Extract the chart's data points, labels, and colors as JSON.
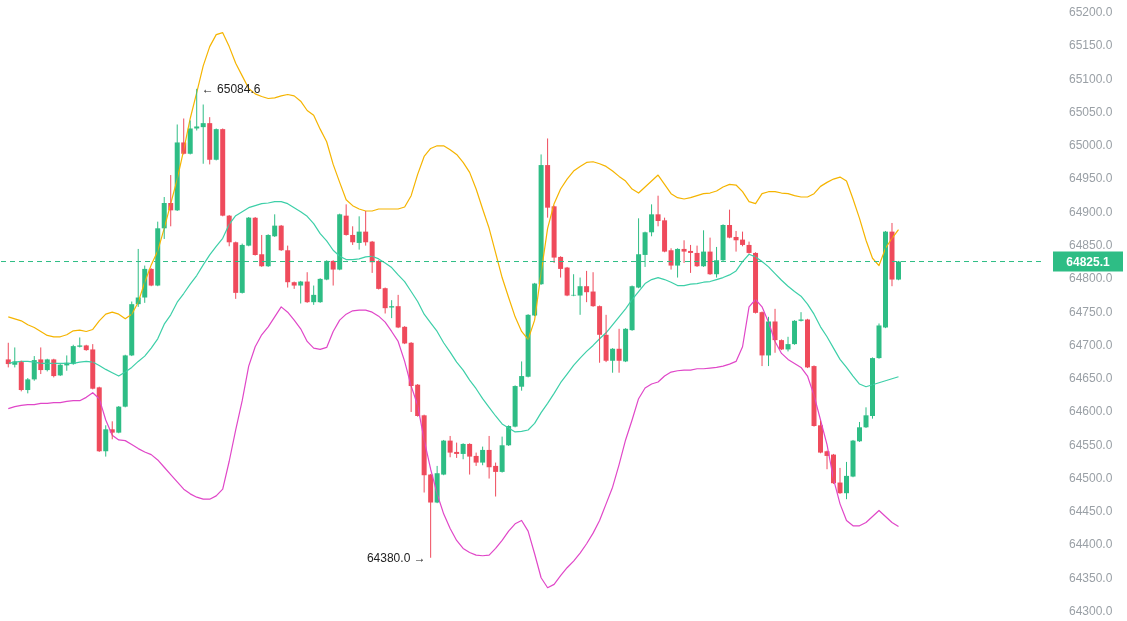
{
  "chart_data": {
    "type": "candlestick",
    "tick_labels": "y",
    "categories": [
      null,
      null,
      null,
      null,
      null,
      null,
      null,
      null,
      null,
      null,
      null,
      null,
      null,
      null,
      null,
      null,
      null,
      null,
      null,
      null,
      null,
      null,
      null,
      null,
      null,
      null,
      null,
      null,
      null,
      null,
      null,
      null,
      null,
      null,
      null,
      null,
      null,
      null,
      null,
      null,
      null,
      null,
      null,
      null,
      null,
      null,
      null,
      null,
      null,
      null,
      null,
      null,
      null,
      null,
      null,
      null,
      null,
      null,
      null,
      null,
      null,
      null,
      null,
      null,
      null,
      null,
      null,
      null,
      null,
      null,
      null,
      null,
      null,
      null,
      null,
      null,
      null,
      null,
      null,
      null,
      null,
      null,
      null,
      null,
      null,
      null,
      null,
      null,
      null,
      null,
      null,
      null,
      null,
      null,
      null,
      null,
      null,
      null,
      null,
      null,
      null,
      null,
      null,
      null,
      null,
      null,
      null,
      null,
      null,
      null,
      null,
      null,
      null,
      null,
      null,
      null,
      null,
      null,
      null,
      null,
      null,
      null,
      null,
      null,
      null,
      null,
      null,
      null,
      null,
      null,
      null,
      null,
      null,
      null,
      null,
      null,
      null,
      null
    ],
    "ohlc": [
      [
        64678,
        64703,
        64666,
        64671
      ],
      [
        64670,
        64696,
        64666,
        64675
      ],
      [
        64674,
        64676,
        64630,
        64632
      ],
      [
        64632,
        64650,
        64627,
        64648
      ],
      [
        64648,
        64683,
        64646,
        64677
      ],
      [
        64678,
        64696,
        64656,
        64662
      ],
      [
        64662,
        64679,
        64660,
        64678
      ],
      [
        64678,
        64679,
        64651,
        64653
      ],
      [
        64654,
        64671,
        64653,
        64670
      ],
      [
        64669,
        64684,
        64661,
        64673
      ],
      [
        64671,
        64700,
        64670,
        64698
      ],
      [
        64697,
        64711,
        64696,
        64699
      ],
      [
        64699,
        64700,
        64691,
        64692
      ],
      [
        64693,
        64701,
        64633,
        64634
      ],
      [
        64636,
        64637,
        64539,
        64540
      ],
      [
        64540,
        64579,
        64532,
        64573
      ],
      [
        64573,
        64585,
        64558,
        64568
      ],
      [
        64568,
        64608,
        64567,
        64607
      ],
      [
        64607,
        64685,
        64606,
        64684
      ],
      [
        64684,
        64765,
        64683,
        64761
      ],
      [
        64761,
        64844,
        64757,
        64771
      ],
      [
        64771,
        64819,
        64763,
        64814
      ],
      [
        64814,
        64815,
        64788,
        64789
      ],
      [
        64789,
        64885,
        64788,
        64875
      ],
      [
        64875,
        64922,
        64859,
        64913
      ],
      [
        64913,
        64955,
        64878,
        64902
      ],
      [
        64902,
        65031,
        64901,
        65004
      ],
      [
        65004,
        65040,
        64986,
        64987
      ],
      [
        64987,
        65037,
        64986,
        65025
      ],
      [
        65025,
        65084.6,
        65022,
        65028
      ],
      [
        65027,
        65061,
        64972,
        65033
      ],
      [
        65033,
        65042,
        64971,
        64978
      ],
      [
        64978,
        65025,
        64977,
        65024
      ],
      [
        65024,
        65025,
        64893,
        64894
      ],
      [
        64894,
        64895,
        64848,
        64854
      ],
      [
        64854,
        64855,
        64769,
        64778
      ],
      [
        64778,
        64852,
        64777,
        64850
      ],
      [
        64849,
        64892,
        64848,
        64891
      ],
      [
        64891,
        64892,
        64834,
        64835
      ],
      [
        64836,
        64865,
        64817,
        64818
      ],
      [
        64818,
        64866,
        64817,
        64865
      ],
      [
        64863,
        64896,
        64862,
        64879
      ],
      [
        64879,
        64880,
        64841,
        64842
      ],
      [
        64842,
        64849,
        64786,
        64794
      ],
      [
        64794,
        64795,
        64784,
        64789
      ],
      [
        64789,
        64796,
        64762,
        64795
      ],
      [
        64795,
        64809,
        64763,
        64764
      ],
      [
        64764,
        64789,
        64760,
        64775
      ],
      [
        64764,
        64800,
        64763,
        64799
      ],
      [
        64798,
        64827,
        64797,
        64826
      ],
      [
        64826,
        64827,
        64789,
        64813
      ],
      [
        64813,
        64897,
        64812,
        64896
      ],
      [
        64894,
        64911,
        64864,
        64865
      ],
      [
        64865,
        64878,
        64850,
        64854
      ],
      [
        64853,
        64893,
        64843,
        64870
      ],
      [
        64870,
        64901,
        64849,
        64854
      ],
      [
        64855,
        64856,
        64808,
        64824
      ],
      [
        64826,
        64827,
        64783,
        64784
      ],
      [
        64785,
        64786,
        64747,
        64755
      ],
      [
        64756,
        64767,
        64740,
        64758
      ],
      [
        64758,
        64775,
        64725,
        64726
      ],
      [
        64727,
        64728,
        64701,
        64702
      ],
      [
        64703,
        64704,
        64599,
        64638
      ],
      [
        64640,
        64641,
        64592,
        64593
      ],
      [
        64594,
        64595,
        64478,
        64504
      ],
      [
        64505,
        64506,
        64380,
        64463
      ],
      [
        64463,
        64518,
        64462,
        64507
      ],
      [
        64505,
        64557,
        64504,
        64556
      ],
      [
        64556,
        64563,
        64531,
        64538
      ],
      [
        64539,
        64553,
        64530,
        64536
      ],
      [
        64536,
        64552,
        64528,
        64551
      ],
      [
        64551,
        64552,
        64505,
        64532
      ],
      [
        64533,
        64538,
        64518,
        64523
      ],
      [
        64523,
        64547,
        64519,
        64542
      ],
      [
        64542,
        64563,
        64499,
        64516
      ],
      [
        64518,
        64523,
        64472,
        64509
      ],
      [
        64509,
        64562,
        64508,
        64549
      ],
      [
        64549,
        64579,
        64548,
        64578
      ],
      [
        64577,
        64639,
        64576,
        64638
      ],
      [
        64637,
        64675,
        64631,
        64653
      ],
      [
        64652,
        64746,
        64651,
        64745
      ],
      [
        64744,
        64793,
        64743,
        64792
      ],
      [
        64791,
        64986,
        64790,
        64970
      ],
      [
        64970,
        65010,
        64891,
        64906
      ],
      [
        64908,
        64909,
        64823,
        64831
      ],
      [
        64832,
        64833,
        64801,
        64814
      ],
      [
        64816,
        64817,
        64773,
        64774
      ],
      [
        64774,
        64806,
        64773,
        64775
      ],
      [
        64774,
        64801,
        64745,
        64788
      ],
      [
        64788,
        64811,
        64764,
        64779
      ],
      [
        64780,
        64809,
        64757,
        64758
      ],
      [
        64758,
        64759,
        64673,
        64715
      ],
      [
        64715,
        64745,
        64674,
        64676
      ],
      [
        64676,
        64695,
        64658,
        64694
      ],
      [
        64694,
        64724,
        64658,
        64676
      ],
      [
        64675,
        64725,
        64674,
        64724
      ],
      [
        64722,
        64789,
        64721,
        64788
      ],
      [
        64786,
        64890,
        64785,
        64836
      ],
      [
        64835,
        64870,
        64817,
        64869
      ],
      [
        64869,
        64911,
        64863,
        64896
      ],
      [
        64896,
        64924,
        64878,
        64886
      ],
      [
        64887,
        64891,
        64839,
        64840
      ],
      [
        64842,
        64845,
        64813,
        64819
      ],
      [
        64819,
        64845,
        64801,
        64844
      ],
      [
        64844,
        64857,
        64823,
        64840
      ],
      [
        64841,
        64850,
        64808,
        64838
      ],
      [
        64838,
        64849,
        64817,
        64818
      ],
      [
        64818,
        64872,
        64817,
        64840
      ],
      [
        64840,
        64861,
        64805,
        64806
      ],
      [
        64806,
        64847,
        64801,
        64827
      ],
      [
        64827,
        64881,
        64826,
        64880
      ],
      [
        64880,
        64903,
        64860,
        64861
      ],
      [
        64862,
        64871,
        64840,
        64857
      ],
      [
        64858,
        64870,
        64848,
        64850
      ],
      [
        64850,
        64855,
        64837,
        64838
      ],
      [
        64838,
        64839,
        64747,
        64748
      ],
      [
        64749,
        64750,
        64668,
        64684
      ],
      [
        64684,
        64742,
        64668,
        64735
      ],
      [
        64735,
        64754,
        64688,
        64707
      ],
      [
        64707,
        64708,
        64692,
        64693
      ],
      [
        64693,
        64712,
        64690,
        64701
      ],
      [
        64701,
        64737,
        64700,
        64736
      ],
      [
        64736,
        64749,
        64735,
        64738
      ],
      [
        64738,
        64739,
        64665,
        64666
      ],
      [
        64668,
        64669,
        64577,
        64578
      ],
      [
        64579,
        64586,
        64537,
        64538
      ],
      [
        64540,
        64541,
        64513,
        64533
      ],
      [
        64535,
        64536,
        64491,
        64492
      ],
      [
        64493,
        64515,
        64476,
        64477
      ],
      [
        64477,
        64524,
        64468,
        64503
      ],
      [
        64502,
        64557,
        64501,
        64556
      ],
      [
        64555,
        64584,
        64554,
        64576
      ],
      [
        64576,
        64606,
        64575,
        64594
      ],
      [
        64593,
        64681,
        64589,
        64680
      ],
      [
        64680,
        64732,
        64679,
        64729
      ],
      [
        64726,
        64871,
        64725,
        64870
      ],
      [
        64870,
        64883,
        64788,
        64798
      ],
      [
        64798,
        64826,
        64797,
        64825.1
      ]
    ],
    "colors": [
      "#ef4b5c",
      "#2ebd85",
      "#ef4b5c",
      "#2ebd85",
      "#2ebd85",
      "#ef4b5c",
      "#2ebd85",
      "#ef4b5c",
      "#2ebd85",
      "#2ebd85",
      "#2ebd85",
      "#2ebd85",
      "#ef4b5c",
      "#ef4b5c",
      "#ef4b5c",
      "#2ebd85",
      "#ef4b5c",
      "#2ebd85",
      "#2ebd85",
      "#2ebd85",
      "#2ebd85",
      "#2ebd85",
      "#ef4b5c",
      "#2ebd85",
      "#2ebd85",
      "#ef4b5c",
      "#2ebd85",
      "#ef4b5c",
      "#2ebd85",
      "#2ebd85",
      "#2ebd85",
      "#ef4b5c",
      "#2ebd85",
      "#ef4b5c",
      "#ef4b5c",
      "#ef4b5c",
      "#2ebd85",
      "#2ebd85",
      "#ef4b5c",
      "#ef4b5c",
      "#2ebd85",
      "#2ebd85",
      "#ef4b5c",
      "#ef4b5c",
      "#ef4b5c",
      "#2ebd85",
      "#ef4b5c",
      "#2ebd85",
      "#2ebd85",
      "#2ebd85",
      "#ef4b5c",
      "#2ebd85",
      "#ef4b5c",
      "#ef4b5c",
      "#2ebd85",
      "#ef4b5c",
      "#ef4b5c",
      "#ef4b5c",
      "#ef4b5c",
      "#2ebd85",
      "#ef4b5c",
      "#ef4b5c",
      "#ef4b5c",
      "#ef4b5c",
      "#ef4b5c",
      "#ef4b5c",
      "#2ebd85",
      "#2ebd85",
      "#ef4b5c",
      "#ef4b5c",
      "#2ebd85",
      "#ef4b5c",
      "#ef4b5c",
      "#2ebd85",
      "#ef4b5c",
      "#ef4b5c",
      "#2ebd85",
      "#2ebd85",
      "#2ebd85",
      "#2ebd85",
      "#2ebd85",
      "#2ebd85",
      "#2ebd85",
      "#ef4b5c",
      "#ef4b5c",
      "#ef4b5c",
      "#ef4b5c",
      "#2ebd85",
      "#2ebd85",
      "#ef4b5c",
      "#ef4b5c",
      "#ef4b5c",
      "#ef4b5c",
      "#2ebd85",
      "#ef4b5c",
      "#2ebd85",
      "#2ebd85",
      "#2ebd85",
      "#2ebd85",
      "#2ebd85",
      "#ef4b5c",
      "#ef4b5c",
      "#ef4b5c",
      "#2ebd85",
      "#ef4b5c",
      "#ef4b5c",
      "#ef4b5c",
      "#2ebd85",
      "#ef4b5c",
      "#2ebd85",
      "#2ebd85",
      "#ef4b5c",
      "#ef4b5c",
      "#ef4b5c",
      "#ef4b5c",
      "#ef4b5c",
      "#ef4b5c",
      "#2ebd85",
      "#ef4b5c",
      "#ef4b5c",
      "#2ebd85",
      "#2ebd85",
      "#2ebd85",
      "#ef4b5c",
      "#ef4b5c",
      "#ef4b5c",
      "#ef4b5c",
      "#ef4b5c",
      "#ef4b5c",
      "#2ebd85",
      "#2ebd85",
      "#2ebd85",
      "#2ebd85",
      "#2ebd85",
      "#2ebd85",
      "#2ebd85",
      "#ef4b5c",
      "#2ebd85"
    ],
    "series": [
      {
        "type": "line",
        "color": "#f5b400",
        "values": [
          64742,
          64739,
          64736,
          64730,
          64726,
          64720,
          64714,
          64712,
          64712,
          64715,
          64721,
          64722,
          64720,
          64723,
          64736,
          64746,
          64749,
          64746,
          64739,
          64746,
          64764,
          64794,
          64820,
          64841,
          64875,
          64912,
          64949,
          64993,
          65040,
          65079,
          65119,
          65148,
          65166,
          65169,
          65148,
          65123,
          65104,
          65085,
          65077,
          65073,
          65070,
          65071,
          65074,
          65076,
          65074,
          65066,
          65052,
          65045,
          65024,
          65005,
          64971,
          64944,
          64918,
          64909,
          64904,
          64901,
          64901,
          64904,
          64904,
          64904,
          64904,
          64907,
          64924,
          64956,
          64983,
          64995,
          64999,
          64999,
          64993,
          64986,
          64974,
          64959,
          64934,
          64904,
          64875,
          64838,
          64801,
          64771,
          64742,
          64720,
          64708,
          64737,
          64808,
          64875,
          64912,
          64934,
          64949,
          64961,
          64968,
          64974,
          64975,
          64972,
          64968,
          64961,
          64953,
          64946,
          64934,
          64928,
          64937,
          64946,
          64955,
          64941,
          64927,
          64921,
          64919,
          64921,
          64924,
          64927,
          64928,
          64931,
          64937,
          64941,
          64940,
          64930,
          64915,
          64912,
          64927,
          64930,
          64930,
          64928,
          64927,
          64924,
          64922,
          64922,
          64927,
          64938,
          64944,
          64949,
          64952,
          64946,
          64919,
          64890,
          64857,
          64830,
          64819,
          64845,
          64860,
          64873
        ]
      },
      {
        "type": "line",
        "color": "#3dcfa8",
        "values": [
          64672,
          64674,
          64675,
          64675,
          64674,
          64672,
          64672,
          64672,
          64672,
          64672,
          64672,
          64674,
          64675,
          64674,
          64669,
          64663,
          64658,
          64653,
          64659,
          64666,
          64675,
          64683,
          64695,
          64709,
          64731,
          64745,
          64764,
          64777,
          64791,
          64804,
          64820,
          64835,
          64848,
          64860,
          64881,
          64894,
          64900,
          64906,
          64909,
          64912,
          64913,
          64915,
          64915,
          64912,
          64906,
          64900,
          64893,
          64882,
          64867,
          64856,
          64842,
          64833,
          64828,
          64828,
          64829,
          64832,
          64833,
          64829,
          64823,
          64816,
          64805,
          64795,
          64780,
          64765,
          64746,
          64733,
          64720,
          64703,
          64689,
          64674,
          64662,
          64647,
          64634,
          64619,
          64606,
          64593,
          64581,
          64575,
          64569,
          64570,
          64572,
          64582,
          64598,
          64612,
          64627,
          64643,
          64656,
          64669,
          64680,
          64690,
          64699,
          64709,
          64718,
          64730,
          64742,
          64754,
          64768,
          64780,
          64792,
          64798,
          64801,
          64798,
          64794,
          64789,
          64789,
          64791,
          64792,
          64794,
          64795,
          64798,
          64801,
          64805,
          64811,
          64825,
          64836,
          64832,
          64825,
          64817,
          64807,
          64797,
          64788,
          64780,
          64773,
          64761,
          64746,
          64727,
          64712,
          64695,
          64678,
          64666,
          64653,
          64641,
          64637,
          64640,
          64643,
          64646,
          64649,
          64652
        ]
      },
      {
        "type": "line",
        "color": "#e047c8",
        "values": [
          64604,
          64607,
          64609,
          64610,
          64610,
          64612,
          64612,
          64613,
          64613,
          64615,
          64616,
          64616,
          64621,
          64628,
          64619,
          64587,
          64564,
          64557,
          64556,
          64550,
          64544,
          64539,
          64535,
          64527,
          64516,
          64505,
          64494,
          64483,
          64476,
          64471,
          64468,
          64468,
          64473,
          64483,
          64525,
          64572,
          64616,
          64668,
          64697,
          64715,
          64727,
          64742,
          64757,
          64749,
          64737,
          64724,
          64705,
          64695,
          64693,
          64696,
          64720,
          64737,
          64746,
          64751,
          64752,
          64752,
          64749,
          64743,
          64734,
          64720,
          64705,
          64675,
          64638,
          64609,
          64557,
          64513,
          64476,
          64446,
          64424,
          64406,
          64394,
          64388,
          64384,
          64383,
          64384,
          64394,
          64406,
          64420,
          64431,
          64436,
          64420,
          64386,
          64350,
          64335,
          64340,
          64353,
          64365,
          64375,
          64387,
          64401,
          64417,
          64436,
          64461,
          64486,
          64520,
          64557,
          64587,
          64619,
          64635,
          64641,
          64644,
          64653,
          64659,
          64661,
          64662,
          64662,
          64664,
          64664,
          64665,
          64666,
          64668,
          64671,
          64675,
          64697,
          64757,
          64768,
          64757,
          64734,
          64705,
          64687,
          64678,
          64672,
          64666,
          64653,
          64624,
          64587,
          64550,
          64498,
          64461,
          64436,
          64428,
          64428,
          64433,
          64442,
          64451,
          64442,
          64433,
          64427
        ]
      }
    ],
    "ylim": [
      64300,
      65200
    ],
    "yticks": [
      {
        "value": 64300,
        "label": "64300.0"
      },
      {
        "value": 64350,
        "label": "64350.0"
      },
      {
        "value": 64400,
        "label": "64400.0"
      },
      {
        "value": 64450,
        "label": "64450.0"
      },
      {
        "value": 64500,
        "label": "64500.0"
      },
      {
        "value": 64550,
        "label": "64550.0"
      },
      {
        "value": 64600,
        "label": "64600.0"
      },
      {
        "value": 64650,
        "label": "64650.0"
      },
      {
        "value": 64700,
        "label": "64700.0"
      },
      {
        "value": 64750,
        "label": "64750.0"
      },
      {
        "value": 64800,
        "label": "64800.0"
      },
      {
        "value": 64850,
        "label": "64850.0"
      },
      {
        "value": 64900,
        "label": "64900.0"
      },
      {
        "value": 64950,
        "label": "64950.0"
      },
      {
        "value": 65000,
        "label": "65000.0"
      },
      {
        "value": 65050,
        "label": "65050.0"
      },
      {
        "value": 65100,
        "label": "65100.0"
      },
      {
        "value": 65150,
        "label": "65150.0"
      },
      {
        "value": 65200,
        "label": "65200.0"
      }
    ],
    "ref_lines": [
      {
        "axis": "y",
        "value": 64825.1,
        "label": "64825.1",
        "color": "#2ebd85",
        "line_style": "dashed"
      }
    ],
    "annotations": [
      "← 65084.6",
      "64380.0 →"
    ]
  }
}
